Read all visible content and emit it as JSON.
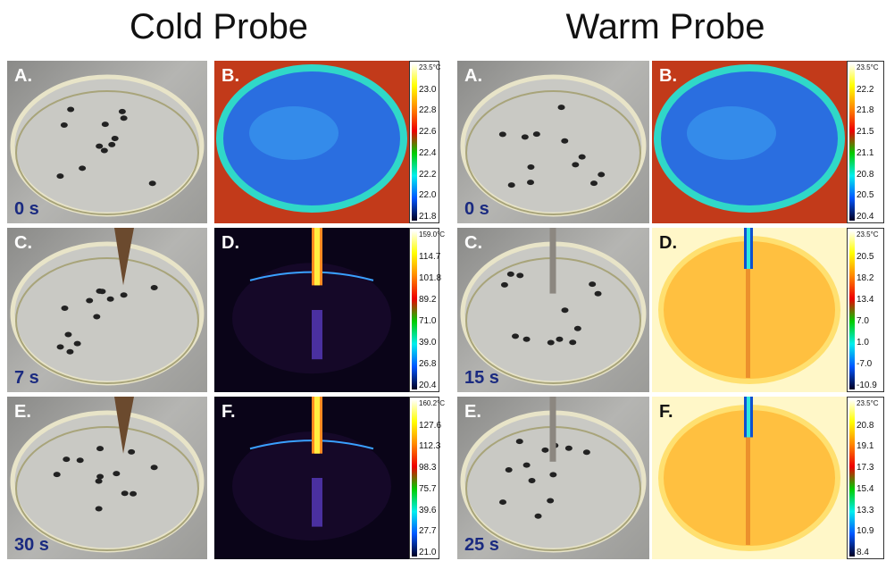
{
  "panels": [
    {
      "title": "Cold Probe",
      "rows": [
        {
          "photo": {
            "letter": "A.",
            "time": "0 s"
          },
          "thermal": {
            "letter": "B.",
            "scale": [
              "23.5°C",
              "23.0",
              "22.8",
              "22.6",
              "22.4",
              "22.2",
              "22.0",
              "21.8"
            ]
          }
        },
        {
          "photo": {
            "letter": "C.",
            "time": "7 s"
          },
          "thermal": {
            "letter": "D.",
            "scale": [
              "159.0°C",
              "114.7",
              "101.8",
              "89.2",
              "71.0",
              "39.0",
              "26.8",
              "20.4"
            ]
          }
        },
        {
          "photo": {
            "letter": "E.",
            "time": "30 s"
          },
          "thermal": {
            "letter": "F.",
            "scale": [
              "160.2°C",
              "127.6",
              "112.3",
              "98.3",
              "75.7",
              "39.6",
              "27.7",
              "21.0"
            ]
          }
        }
      ]
    },
    {
      "title": "Warm Probe",
      "rows": [
        {
          "photo": {
            "letter": "A.",
            "time": "0 s"
          },
          "thermal": {
            "letter": "B.",
            "scale": [
              "23.5°C",
              "22.2",
              "21.8",
              "21.5",
              "21.1",
              "20.8",
              "20.5",
              "20.4"
            ]
          }
        },
        {
          "photo": {
            "letter": "C.",
            "time": "15 s"
          },
          "thermal": {
            "letter": "D.",
            "scale": [
              "23.5°C",
              "20.5",
              "18.2",
              "13.4",
              "7.0",
              "1.0",
              "-7.0",
              "-10.9"
            ]
          }
        },
        {
          "photo": {
            "letter": "E.",
            "time": "25 s"
          },
          "thermal": {
            "letter": "F.",
            "scale": [
              "23.5°C",
              "20.8",
              "19.1",
              "17.3",
              "15.4",
              "13.3",
              "10.9",
              "8.4"
            ]
          }
        }
      ]
    }
  ]
}
